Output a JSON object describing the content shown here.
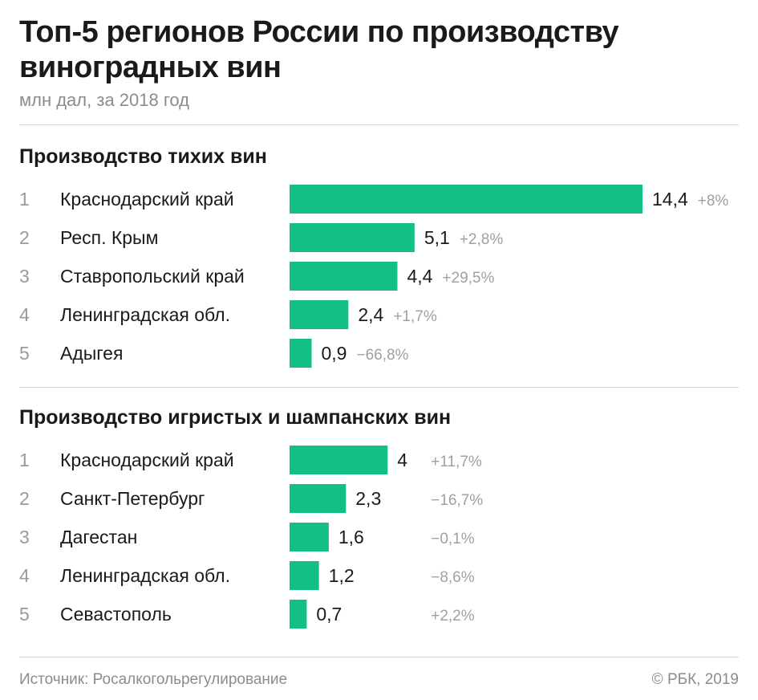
{
  "title": "Топ-5 регионов России по производству виноградных вин",
  "subtitle": "млн дал, за 2018 год",
  "bar_color": "#13bf85",
  "chart_data": [
    {
      "type": "bar",
      "orientation": "horizontal",
      "title": "Производство тихих вин",
      "categories": [
        "Краснодарский край",
        "Респ. Крым",
        "Ставропольский край",
        "Ленинградская обл.",
        "Адыгея"
      ],
      "ranks": [
        "1",
        "2",
        "3",
        "4",
        "5"
      ],
      "values": [
        14.4,
        5.1,
        4.4,
        2.4,
        0.9
      ],
      "value_labels": [
        "14,4",
        "5,1",
        "4,4",
        "2,4",
        "0,9"
      ],
      "changes": [
        "+8%",
        "+2,8%",
        "+29,5%",
        "+1,7%",
        "−66,8%"
      ],
      "xlim": [
        0,
        14.4
      ]
    },
    {
      "type": "bar",
      "orientation": "horizontal",
      "title": "Производство игристых и шампанских вин",
      "categories": [
        "Краснодарский край",
        "Санкт-Петербург",
        "Дагестан",
        "Ленинградская обл.",
        "Севастополь"
      ],
      "ranks": [
        "1",
        "2",
        "3",
        "4",
        "5"
      ],
      "values": [
        4,
        2.3,
        1.6,
        1.2,
        0.7
      ],
      "value_labels": [
        "4",
        "2,3",
        "1,6",
        "1,2",
        "0,7"
      ],
      "changes": [
        "+11,7%",
        "−16,7%",
        "−0,1%",
        "−8,6%",
        "+2,2%"
      ],
      "xlim": [
        0,
        14.4
      ]
    }
  ],
  "footer": {
    "source": "Источник: Росалкогольрегулирование",
    "copyright": "© РБК, 2019"
  }
}
